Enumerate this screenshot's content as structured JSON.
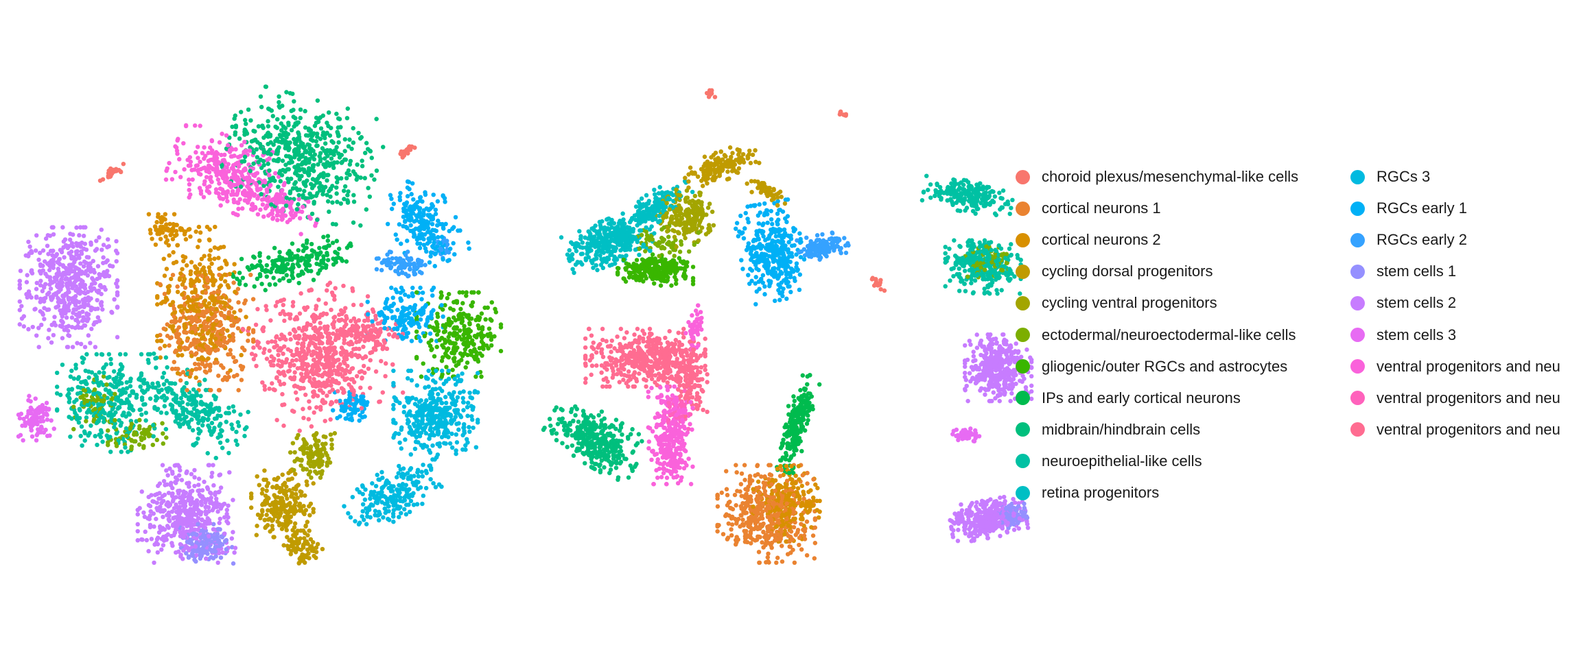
{
  "chart_data": {
    "type": "scatter",
    "title": "",
    "xlabel": "",
    "ylabel": "",
    "axes_visible": false,
    "grid": false,
    "panels": 2,
    "legend_position": "right",
    "legend_columns": 2,
    "series": [
      {
        "name": "choroid plexus/mesenchymal-like cells",
        "color": "#F8766D"
      },
      {
        "name": "cortical neurons 1",
        "color": "#EA8331"
      },
      {
        "name": "cortical neurons 2",
        "color": "#D89000"
      },
      {
        "name": "cycling dorsal progenitors",
        "color": "#C09B00"
      },
      {
        "name": "cycling ventral progenitors",
        "color": "#A3A500"
      },
      {
        "name": "ectodermal/neuroectodermal-like cells",
        "color": "#7CAE00"
      },
      {
        "name": "gliogenic/outer RGCs and astrocytes",
        "color": "#39B600"
      },
      {
        "name": "IPs and early cortical neurons",
        "color": "#00BB4E"
      },
      {
        "name": "midbrain/hindbrain cells",
        "color": "#00BF7D"
      },
      {
        "name": "neuroepithelial-like cells",
        "color": "#00C1A3"
      },
      {
        "name": "retina progenitors",
        "color": "#00BFC4"
      },
      {
        "name": "RGCs 3",
        "color": "#00BAE0"
      },
      {
        "name": "RGCs early 1",
        "color": "#00B0F6"
      },
      {
        "name": "RGCs early 2",
        "color": "#35A2FF"
      },
      {
        "name": "stem cells 1",
        "color": "#9590FF"
      },
      {
        "name": "stem cells 2",
        "color": "#C77CFF"
      },
      {
        "name": "stem cells 3",
        "color": "#E76BF3"
      },
      {
        "name": "ventral progenitors and neu",
        "color": "#FA62DB"
      },
      {
        "name": "ventral progenitors and neu",
        "color": "#FF62BC"
      },
      {
        "name": "ventral progenitors and neu",
        "color": "#FF6C91"
      }
    ]
  }
}
